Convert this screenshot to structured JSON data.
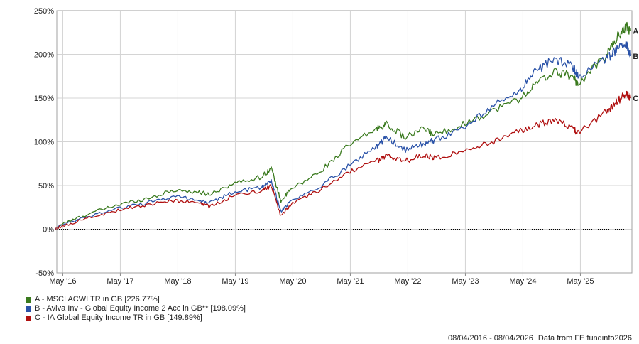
{
  "chart_data": {
    "type": "line",
    "title": "",
    "xlabel": "",
    "ylabel": "",
    "ylim": [
      -50,
      250
    ],
    "yticks": [
      "250%",
      "200%",
      "150%",
      "100%",
      "50%",
      "0%",
      "-50%"
    ],
    "xticks": [
      "May '16",
      "May '17",
      "May '18",
      "May '19",
      "May '20",
      "May '21",
      "May '22",
      "May '23",
      "May '24",
      "May '25"
    ],
    "grid": true,
    "legend_position": "bottom-left",
    "x": [
      "2016-04",
      "2016-05",
      "2016-11",
      "2017-05",
      "2017-11",
      "2018-05",
      "2018-10",
      "2018-12",
      "2019-05",
      "2019-11",
      "2020-01",
      "2020-03",
      "2020-05",
      "2020-11",
      "2021-05",
      "2021-11",
      "2022-01",
      "2022-05",
      "2022-09",
      "2022-11",
      "2023-05",
      "2023-11",
      "2024-05",
      "2024-08",
      "2024-12",
      "2025-04",
      "2025-05",
      "2025-11",
      "2026-01",
      "2026-03",
      "2026-04"
    ],
    "series": [
      {
        "name": "A - MSCI ACWI TR in GB [226.77%]",
        "label": "A",
        "color": "#3a7a1e",
        "values": [
          0,
          5,
          18,
          28,
          35,
          45,
          42,
          40,
          52,
          60,
          70,
          32,
          45,
          65,
          95,
          115,
          120,
          105,
          115,
          108,
          120,
          135,
          150,
          165,
          180,
          175,
          165,
          200,
          218,
          232,
          227
        ]
      },
      {
        "name": "B - Aviva Inv - Global Equity Income 2 Acc in GB** [198.09%]",
        "label": "B",
        "color": "#2a52a8",
        "values": [
          0,
          4,
          15,
          24,
          30,
          38,
          33,
          30,
          42,
          48,
          56,
          20,
          32,
          48,
          72,
          95,
          105,
          90,
          98,
          102,
          115,
          140,
          160,
          180,
          195,
          185,
          175,
          195,
          205,
          212,
          198
        ]
      },
      {
        "name": "C - IA Global Equity Income TR in GB [149.89%]",
        "label": "C",
        "color": "#b01010",
        "values": [
          0,
          3,
          13,
          22,
          28,
          33,
          30,
          26,
          38,
          44,
          50,
          15,
          28,
          44,
          65,
          78,
          84,
          78,
          85,
          82,
          88,
          100,
          112,
          118,
          125,
          115,
          110,
          135,
          145,
          155,
          150
        ]
      }
    ]
  },
  "footer": {
    "date_range": "08/04/2016 - 08/04/2026",
    "source": "Data from FE fundinfo2026"
  }
}
